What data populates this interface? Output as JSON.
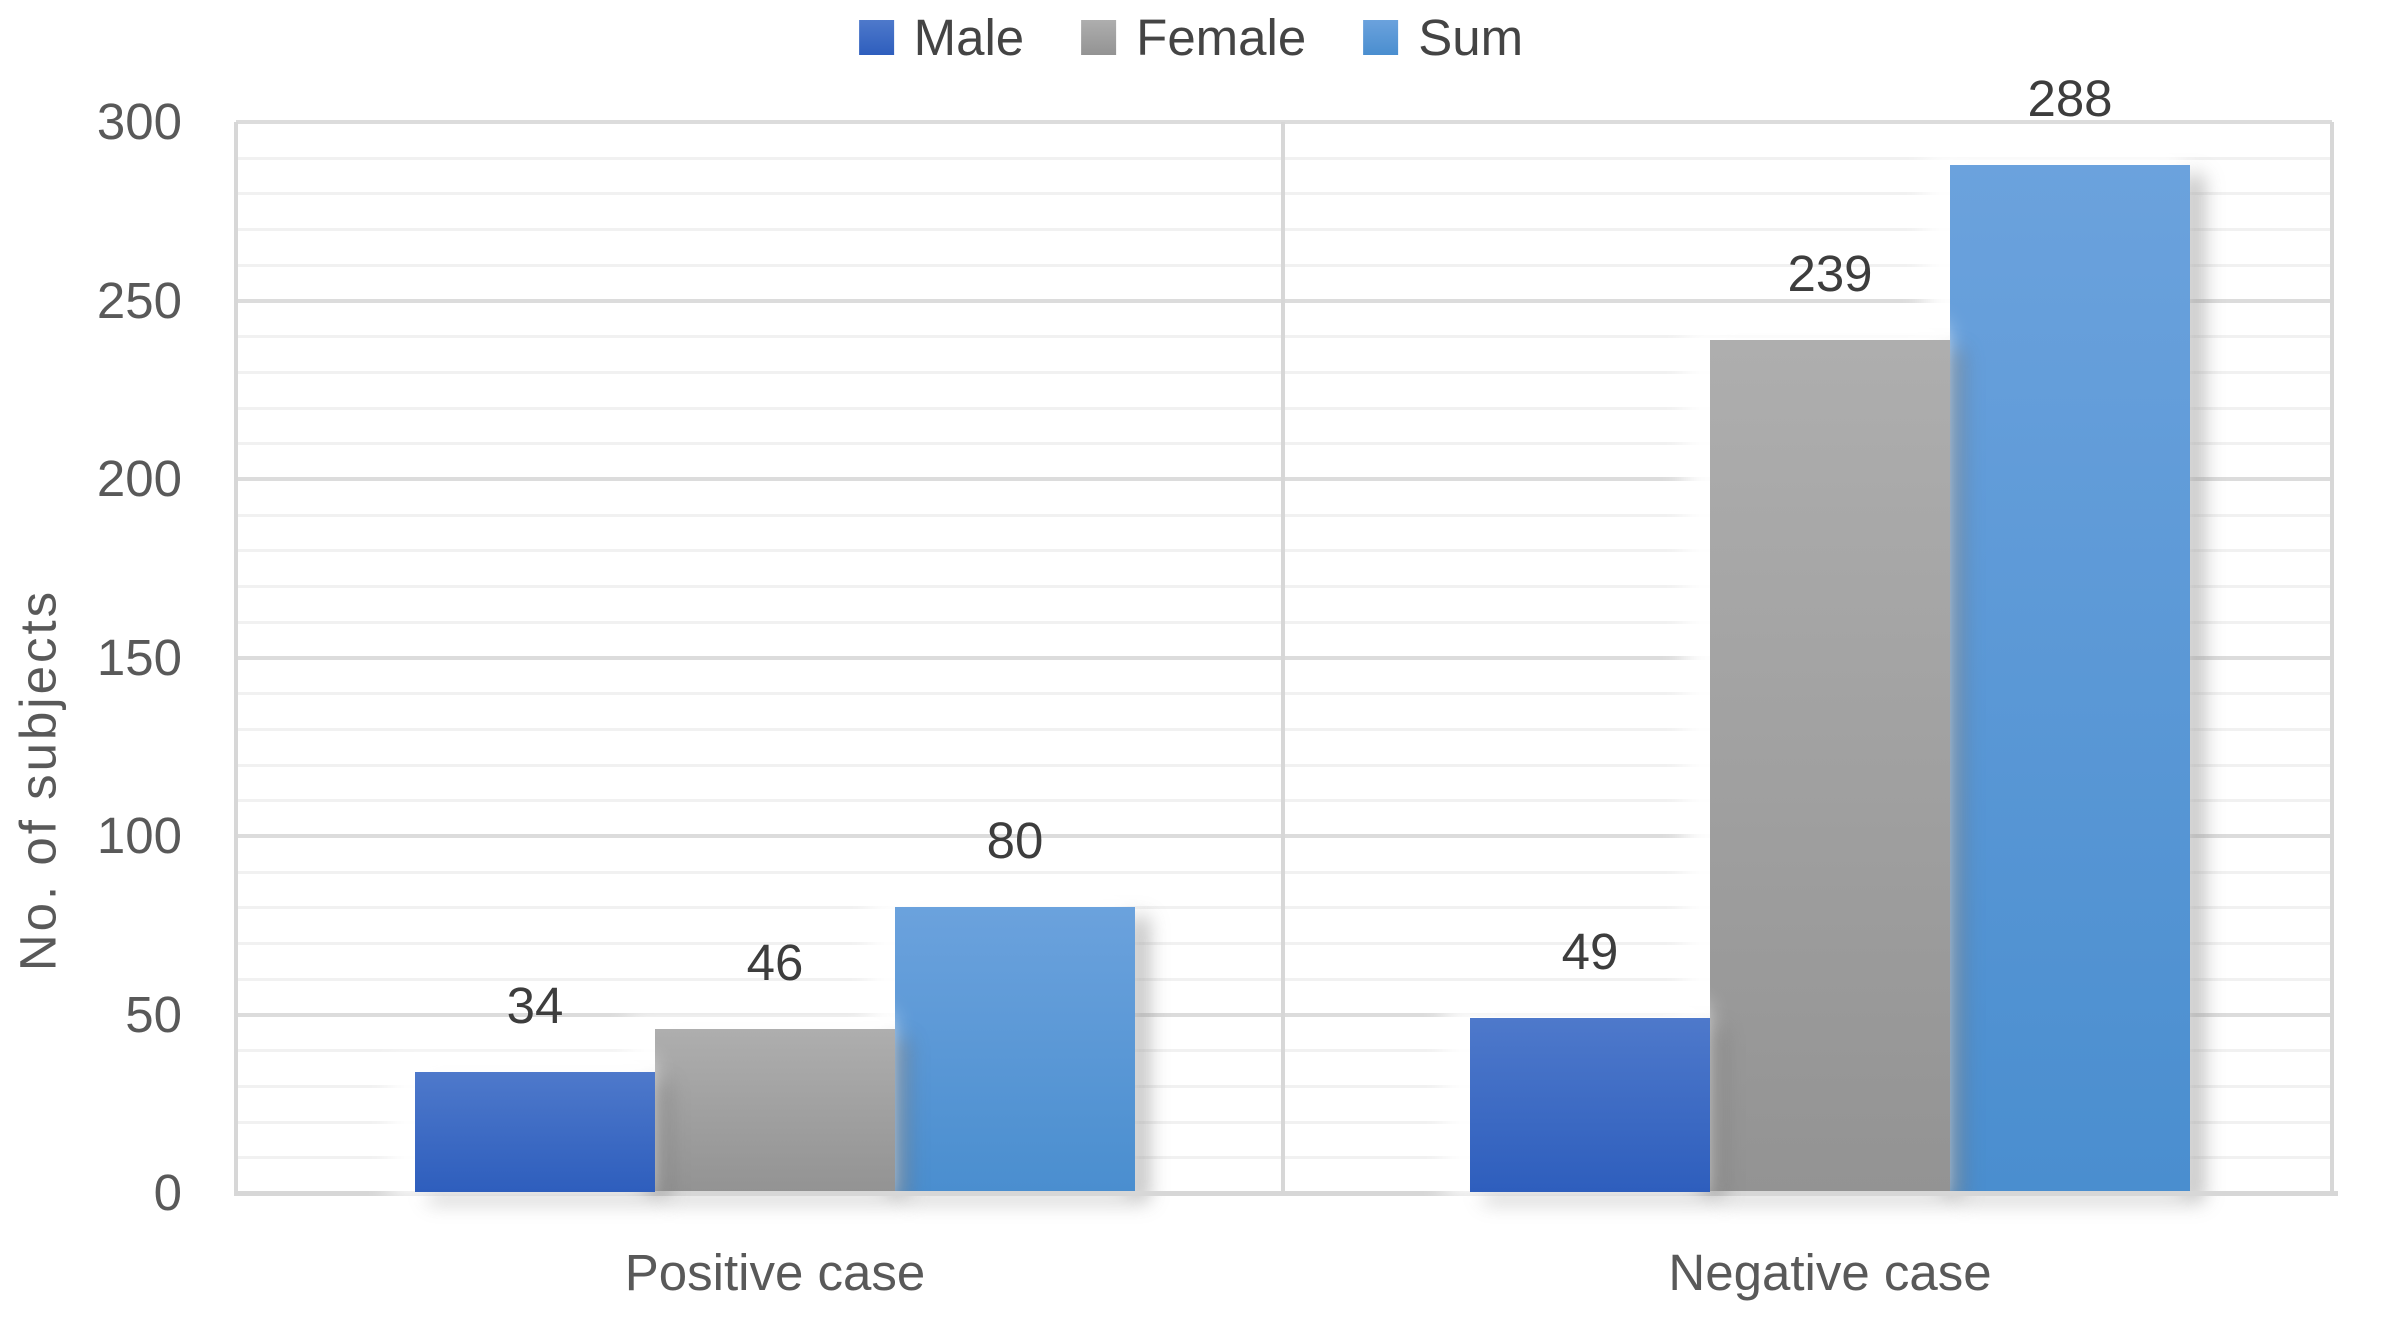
{
  "chart_data": {
    "type": "bar",
    "title": "",
    "categories": [
      "Positive case",
      "Negative case"
    ],
    "series": [
      {
        "name": "Male",
        "values": [
          34,
          49
        ],
        "color_top": "#4e79cb",
        "color_bottom": "#2e5ebd"
      },
      {
        "name": "Female",
        "values": [
          46,
          239
        ],
        "color_top": "#aeaeae",
        "color_bottom": "#939393"
      },
      {
        "name": "Sum",
        "values": [
          80,
          288
        ],
        "color_top": "#6ba2dd",
        "color_bottom": "#4a8ecf"
      }
    ],
    "data_labels": [
      [
        34,
        49
      ],
      [
        46,
        239
      ],
      [
        80,
        288
      ]
    ],
    "xlabel": "",
    "ylabel": "No. of subjects",
    "ylim": [
      0,
      300
    ],
    "yticks": [
      0,
      50,
      100,
      150,
      200,
      250,
      300
    ],
    "minor_gridline_step": 10,
    "major_gridline_step": 50,
    "grid": true,
    "legend_position": "top",
    "legend_labels": [
      "Male",
      "Female",
      "Sum"
    ]
  },
  "colors": {
    "background": "#ffffff",
    "axis_text": "#595959",
    "data_label_text": "#3d3d3d",
    "legend_text": "#444444",
    "gridline_minor": "#f1f1f1",
    "gridline_major": "#dcdcdc",
    "axis_line": "#d7d7d7"
  }
}
